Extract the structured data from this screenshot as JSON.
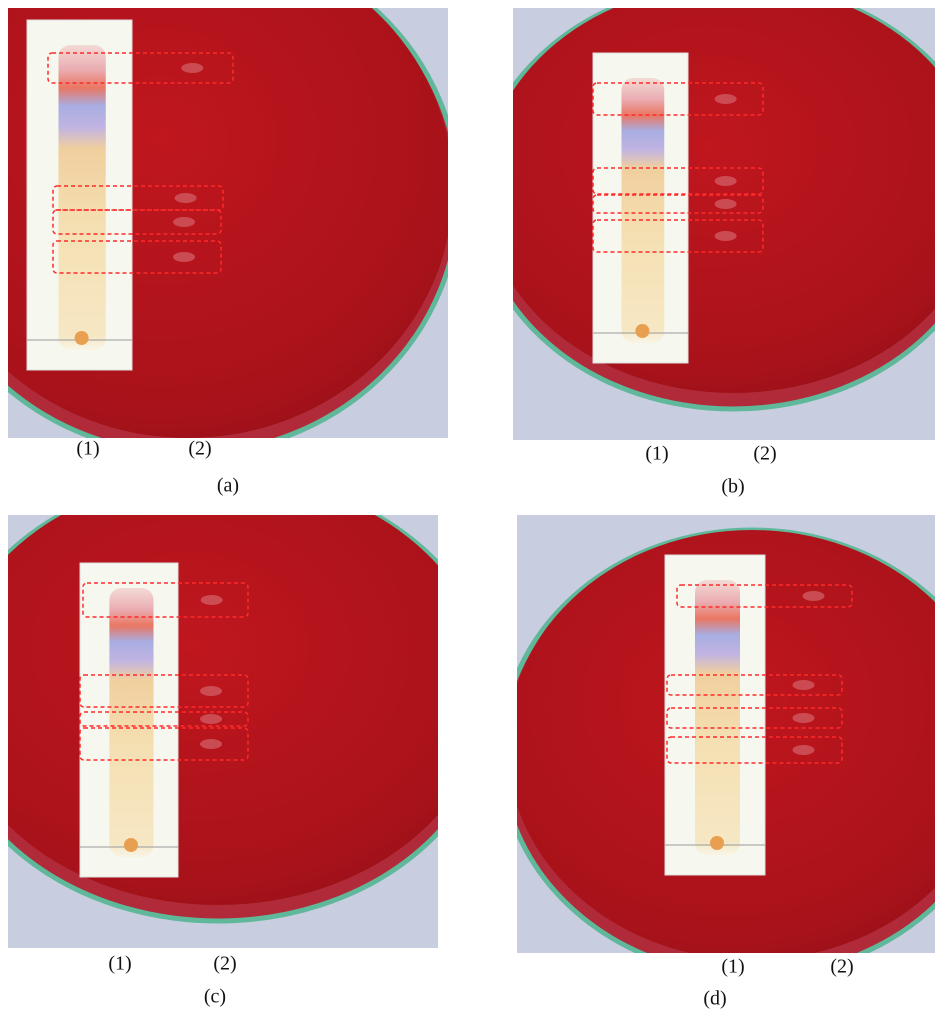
{
  "panels": [
    {
      "lane_1": "(1)",
      "lane_2": "(2)",
      "caption": "(a)"
    },
    {
      "lane_1": "(1)",
      "lane_2": "(2)",
      "caption": "(b)"
    },
    {
      "lane_1": "(1)",
      "lane_2": "(2)",
      "caption": "(c)"
    },
    {
      "lane_1": "(1)",
      "lane_2": "(2)",
      "caption": "(d)"
    }
  ]
}
